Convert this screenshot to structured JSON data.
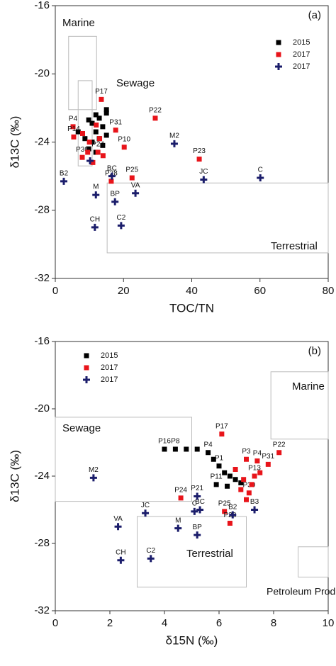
{
  "chart_data": [
    {
      "type": "scatter",
      "annotation": "(a)",
      "xlabel": "TOC/TN",
      "ylabel": "δ13C (‰)",
      "xlim": [
        0,
        80
      ],
      "xticks": [
        0,
        20,
        40,
        60,
        80
      ],
      "ylim": [
        -32,
        -16
      ],
      "yticks": [
        -32,
        -28,
        -24,
        -20,
        -16
      ],
      "legend": "upper right",
      "regions": [
        {
          "label": "Marine",
          "xlim": [
            3.9,
            12.1
          ],
          "ylim": [
            -22.1,
            -17.8
          ]
        },
        {
          "label": "Sewage",
          "xlim": [
            6.7,
            10.8
          ],
          "ylim": [
            -25.4,
            -20.4
          ]
        },
        {
          "label": "Terrestrial",
          "xlim": [
            15.2,
            80
          ],
          "ylim": [
            -30.5,
            -26.4
          ]
        }
      ],
      "series": [
        {
          "name": "2015",
          "color": "#000000",
          "marker": "square",
          "x": [
            15.0,
            15.0,
            11.9,
            12.9,
            9.8,
            10.8,
            13.9,
            11.9,
            15.0,
            8.7,
            12.9,
            10.8,
            13.9,
            9.8,
            11.9,
            6.7
          ],
          "values": [
            -22.1,
            -22.3,
            -22.4,
            -22.6,
            -22.7,
            -22.9,
            -23.1,
            -23.4,
            -23.6,
            -23.8,
            -23.8,
            -24.0,
            -24.2,
            -24.4,
            -24.6,
            -23.4
          ]
        },
        {
          "name": "2017",
          "color": "#e8141a",
          "marker": "square",
          "x": [
            13.5,
            29.3,
            17.7,
            20.2,
            42.2,
            22.5,
            5.2,
            5.4,
            7.9,
            12.5,
            16.4,
            8,
            10,
            12,
            14,
            9.5,
            11,
            13
          ],
          "values": [
            -21.5,
            -22.6,
            -23.3,
            -24.3,
            -25.0,
            -26.1,
            -23.1,
            -23.7,
            -24.9,
            -24.6,
            -26.3,
            -23.5,
            -24.0,
            -23.0,
            -24.8,
            -24.6,
            -25.2,
            -23.8
          ],
          "labels": [
            "P17",
            "P22",
            "P31",
            "P10",
            "P23",
            "P25",
            "P4",
            "P14",
            "P30",
            "P24",
            "P28",
            null,
            null,
            null,
            null,
            null,
            null,
            null
          ]
        },
        {
          "name": "2017",
          "color": "#1b1d6b",
          "marker": "plus",
          "x": [
            34.9,
            43.5,
            60.1,
            2.5,
            11.9,
            23.5,
            17.5,
            11.6,
            19.3,
            16.6,
            10.2
          ],
          "values": [
            -24.1,
            -26.2,
            -26.1,
            -26.3,
            -27.1,
            -27.0,
            -27.5,
            -29.0,
            -28.9,
            -26.0,
            -25.1
          ],
          "labels": [
            "M2",
            "JC",
            "C",
            "B2",
            "M",
            "VA",
            "BP",
            "CH",
            "C2",
            "BC",
            null
          ]
        }
      ]
    },
    {
      "type": "scatter",
      "annotation": "(b)",
      "xlabel": "δ15N (‰)",
      "ylabel": "δ13C (‰)",
      "xlim": [
        0,
        10
      ],
      "xticks": [
        0,
        2,
        4,
        6,
        8,
        10
      ],
      "ylim": [
        -32,
        -16
      ],
      "yticks": [
        -32,
        -28,
        -24,
        -20,
        -16
      ],
      "legend": "upper left",
      "regions": [
        {
          "label": "Marine",
          "xlim": [
            7.9,
            10
          ],
          "ylim": [
            -21.8,
            -17.8
          ]
        },
        {
          "label": "Sewage",
          "xlim": [
            0,
            5.0
          ],
          "ylim": [
            -25.5,
            -20.5
          ]
        },
        {
          "label": "Terrestrial",
          "xlim": [
            3.0,
            7.0
          ],
          "ylim": [
            -30.6,
            -26.4
          ]
        },
        {
          "label": "Petroleum Products",
          "xlim": [
            8.9,
            10
          ],
          "ylim": [
            -30.0,
            -28.2
          ]
        }
      ],
      "series": [
        {
          "name": "2015",
          "color": "#000000",
          "marker": "square",
          "x": [
            4.0,
            4.4,
            4.8,
            5.2,
            5.6,
            5.8,
            6.0,
            6.2,
            6.4,
            6.6,
            5.9,
            6.3,
            6.8
          ],
          "values": [
            -22.4,
            -22.4,
            -22.4,
            -22.4,
            -22.6,
            -23.0,
            -23.4,
            -23.8,
            -24.0,
            -24.2,
            -24.5,
            -24.6,
            -24.4
          ],
          "labels": [
            "P16",
            "P8",
            null,
            null,
            "P4",
            null,
            "P1",
            null,
            null,
            null,
            "P11",
            null,
            null
          ]
        },
        {
          "name": "2017",
          "color": "#e8141a",
          "marker": "square",
          "x": [
            6.1,
            8.2,
            7.8,
            7.0,
            7.4,
            4.6,
            6.2,
            6.4,
            7.1,
            7.3,
            6.6,
            6.9,
            7.2,
            7.5,
            6.8,
            7.0
          ],
          "values": [
            -21.5,
            -22.6,
            -23.3,
            -23.0,
            -23.1,
            -25.3,
            -26.1,
            -26.8,
            -25.0,
            -24.0,
            -23.6,
            -24.2,
            -24.5,
            -23.8,
            -24.8,
            -25.4
          ],
          "labels": [
            "P17",
            "P22",
            "P31",
            "P3",
            "P4",
            "P24",
            "P25",
            "P28",
            "P30",
            "P13",
            null,
            null,
            null,
            null,
            null,
            null
          ]
        },
        {
          "name": "2017",
          "color": "#1b1d6b",
          "marker": "plus",
          "x": [
            1.4,
            2.3,
            3.3,
            2.4,
            3.5,
            4.5,
            5.2,
            5.3,
            5.1,
            6.5,
            7.3,
            5.2
          ],
          "values": [
            -24.1,
            -27.0,
            -26.2,
            -29.0,
            -28.9,
            -27.1,
            -27.5,
            -26.0,
            -26.1,
            -26.3,
            -26.0,
            -25.2
          ],
          "labels": [
            "M2",
            "VA",
            "JC",
            "CH",
            "C2",
            "M",
            "BP",
            "BC",
            "C",
            "B2",
            "B3",
            "P21"
          ]
        }
      ]
    }
  ]
}
